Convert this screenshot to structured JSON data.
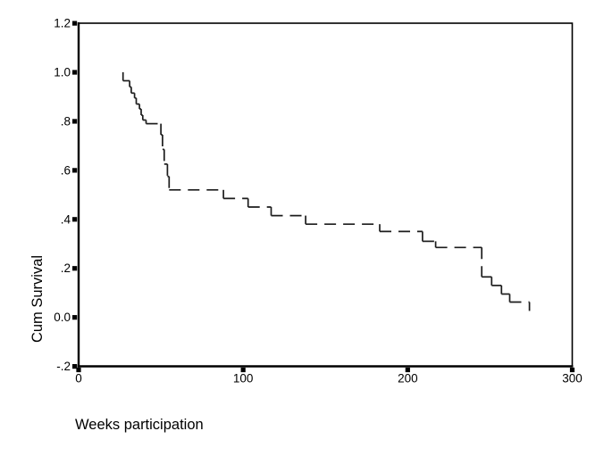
{
  "figure": {
    "background": "#ffffff",
    "frame_color": "#000000",
    "text_color": "#000000"
  },
  "chart_data": {
    "type": "line",
    "subtype": "kaplan_meier_step",
    "title": "",
    "xlabel": "Weeks participation",
    "ylabel": "Cum Survival",
    "xlim": [
      0,
      300
    ],
    "ylim": [
      -0.2,
      1.2
    ],
    "grid": false,
    "legend": false,
    "line": {
      "color": "#1c1c1c",
      "style": "dashed",
      "width": 1.7
    },
    "x_ticks": [
      {
        "value": 0,
        "label": "0"
      },
      {
        "value": 100,
        "label": "100"
      },
      {
        "value": 200,
        "label": "200"
      },
      {
        "value": 300,
        "label": "300"
      }
    ],
    "y_ticks": [
      {
        "value": 1.2,
        "label": "1.2"
      },
      {
        "value": 1.0,
        "label": "1.0"
      },
      {
        "value": 0.8,
        "label": ".8"
      },
      {
        "value": 0.6,
        "label": ".6"
      },
      {
        "value": 0.4,
        "label": ".4"
      },
      {
        "value": 0.2,
        "label": ".2"
      },
      {
        "value": 0.0,
        "label": "0.0"
      },
      {
        "value": -0.2,
        "label": "-.2"
      }
    ],
    "series": [
      {
        "name": "Cumulative survival",
        "points": [
          [
            27,
            1.0
          ],
          [
            27,
            0.965
          ],
          [
            31,
            0.94
          ],
          [
            32,
            0.915
          ],
          [
            34,
            0.895
          ],
          [
            35,
            0.87
          ],
          [
            37,
            0.85
          ],
          [
            38,
            0.825
          ],
          [
            39,
            0.805
          ],
          [
            41,
            0.79
          ],
          [
            50,
            0.745
          ],
          [
            51,
            0.685
          ],
          [
            52,
            0.625
          ],
          [
            54,
            0.575
          ],
          [
            55,
            0.52
          ],
          [
            88,
            0.485
          ],
          [
            103,
            0.45
          ],
          [
            117,
            0.415
          ],
          [
            138,
            0.38
          ],
          [
            183,
            0.35
          ],
          [
            209,
            0.31
          ],
          [
            217,
            0.285
          ],
          [
            245,
            0.165
          ],
          [
            251,
            0.13
          ],
          [
            257,
            0.095
          ],
          [
            262,
            0.062
          ],
          [
            274,
            0.026
          ]
        ]
      }
    ]
  }
}
